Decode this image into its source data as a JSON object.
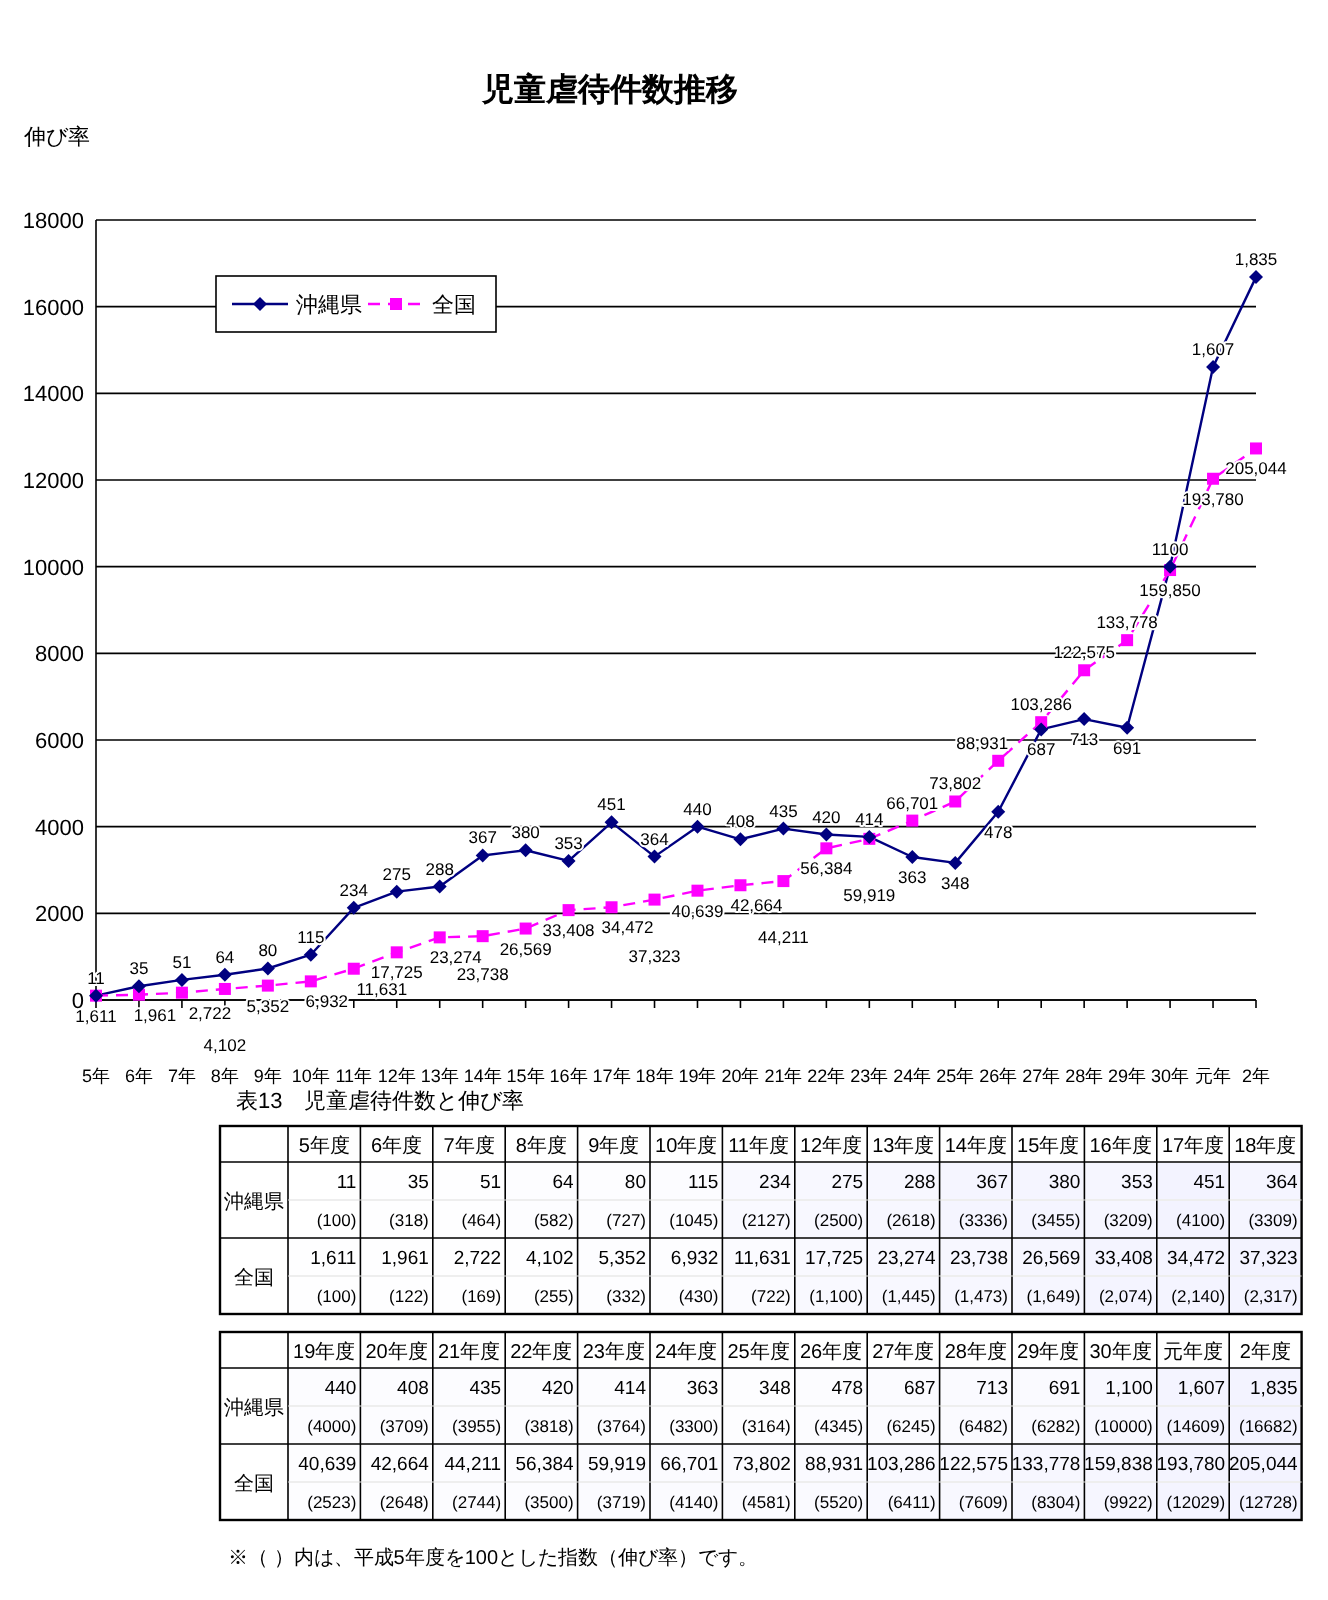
{
  "chart_data": [
    {
      "type": "line",
      "title": "児童虐待件数推移",
      "ylabel": "伸び率",
      "categories": [
        "5年",
        "6年",
        "7年",
        "8年",
        "9年",
        "10年",
        "11年",
        "12年",
        "13年",
        "14年",
        "15年",
        "16年",
        "17年",
        "18年",
        "19年",
        "20年",
        "21年",
        "22年",
        "23年",
        "24年",
        "25年",
        "26年",
        "27年",
        "28年",
        "29年",
        "30年",
        "元年",
        "2年"
      ],
      "ylim": [
        0,
        18000
      ],
      "yticks": [
        0,
        2000,
        4000,
        6000,
        8000,
        10000,
        12000,
        14000,
        16000,
        18000
      ],
      "grid": "y",
      "legend": "top left",
      "series": [
        {
          "name": "沖縄県",
          "color": "#000080",
          "marker": "diamond",
          "line_style": "solid",
          "values": [
            100,
            318,
            464,
            582,
            727,
            1045,
            2127,
            2500,
            2618,
            3336,
            3455,
            3209,
            4100,
            3309,
            4000,
            3709,
            3955,
            3818,
            3764,
            3300,
            3164,
            4345,
            6245,
            6482,
            6282,
            10000,
            14609,
            16682
          ]
        },
        {
          "name": "全国",
          "color": "#ff00ff",
          "marker": "square",
          "line_style": "dashed",
          "values": [
            100,
            122,
            169,
            255,
            332,
            430,
            722,
            1100,
            1445,
            1473,
            1649,
            2074,
            2140,
            2317,
            2523,
            2648,
            2744,
            3500,
            3719,
            4140,
            4581,
            5520,
            6411,
            7609,
            8304,
            9922,
            12029,
            12728
          ]
        }
      ],
      "annotations": [
        {
          "text": "11",
          "x": "5年",
          "y": 100
        },
        {
          "text": "35",
          "x": "6年",
          "y": 318
        },
        {
          "text": "51",
          "x": "7年",
          "y": 464
        },
        {
          "text": "64",
          "x": "8年",
          "y": 582
        },
        {
          "text": "80",
          "x": "9年",
          "y": 727
        },
        {
          "text": "115",
          "x": "10年",
          "y": 1045
        },
        {
          "text": "234",
          "x": "11年",
          "y": 2127
        },
        {
          "text": "275",
          "x": "12年",
          "y": 2500
        },
        {
          "text": "288",
          "x": "13年",
          "y": 2618
        },
        {
          "text": "367",
          "x": "14年",
          "y": 3336
        },
        {
          "text": "380",
          "x": "15年",
          "y": 3455
        },
        {
          "text": "353",
          "x": "16年",
          "y": 3209
        },
        {
          "text": "451",
          "x": "17年",
          "y": 4100
        },
        {
          "text": "364",
          "x": "18年",
          "y": 3309
        },
        {
          "text": "440",
          "x": "19年",
          "y": 4000
        },
        {
          "text": "408",
          "x": "20年",
          "y": 3709
        },
        {
          "text": "435",
          "x": "21年",
          "y": 3955
        },
        {
          "text": "420",
          "x": "22年",
          "y": 3818
        },
        {
          "text": "414",
          "x": "23年",
          "y": 3764
        },
        {
          "text": "363",
          "x": "24年",
          "y": 3300
        },
        {
          "text": "348",
          "x": "25年",
          "y": 3164
        },
        {
          "text": "478",
          "x": "26年",
          "y": 4345
        },
        {
          "text": "687",
          "x": "27年",
          "y": 6245
        },
        {
          "text": "713",
          "x": "28年",
          "y": 6482
        },
        {
          "text": "691",
          "x": "29年",
          "y": 6282
        },
        {
          "text": "1100",
          "x": "30年",
          "y": 10000
        },
        {
          "text": "1,607",
          "x": "元年",
          "y": 14609
        },
        {
          "text": "1,835",
          "x": "2年",
          "y": 16682
        },
        {
          "text": "1,611",
          "x": "5年",
          "y": 100
        },
        {
          "text": "1,961",
          "x": "6年",
          "y": 122
        },
        {
          "text": "2,722",
          "x": "7年",
          "y": 169
        },
        {
          "text": "4,102",
          "x": "8年",
          "y": 255
        },
        {
          "text": "5,352",
          "x": "9年",
          "y": 332
        },
        {
          "text": "6,932",
          "x": "10年",
          "y": 430
        },
        {
          "text": "11,631",
          "x": "11年",
          "y": 722
        },
        {
          "text": "17,725",
          "x": "12年",
          "y": 1100
        },
        {
          "text": "23,274",
          "x": "13年",
          "y": 1445
        },
        {
          "text": "23,738",
          "x": "14年",
          "y": 1473
        },
        {
          "text": "26,569",
          "x": "15年",
          "y": 1649
        },
        {
          "text": "33,408",
          "x": "16年",
          "y": 2074
        },
        {
          "text": "34,472",
          "x": "17年",
          "y": 2140
        },
        {
          "text": "37,323",
          "x": "18年",
          "y": 2317
        },
        {
          "text": "40,639",
          "x": "19年",
          "y": 2523
        },
        {
          "text": "42,664",
          "x": "20年",
          "y": 2648
        },
        {
          "text": "44,211",
          "x": "21年",
          "y": 2744
        },
        {
          "text": "56,384",
          "x": "22年",
          "y": 3500
        },
        {
          "text": "59,919",
          "x": "23年",
          "y": 3719
        },
        {
          "text": "66,701",
          "x": "24年",
          "y": 4140
        },
        {
          "text": "73,802",
          "x": "25年",
          "y": 4581
        },
        {
          "text": "88,931",
          "x": "26年",
          "y": 5520
        },
        {
          "text": "103,286",
          "x": "27年",
          "y": 6411
        },
        {
          "text": "122,575",
          "x": "28年",
          "y": 7609
        },
        {
          "text": "133,778",
          "x": "29年",
          "y": 8304
        },
        {
          "text": "159,850",
          "x": "30年",
          "y": 9922
        },
        {
          "text": "193,780",
          "x": "元年",
          "y": 12029
        },
        {
          "text": "205,044",
          "x": "2年",
          "y": 12728
        }
      ]
    },
    {
      "type": "heatmap",
      "title": "表13　児童虐待件数と伸び率",
      "categories": [
        "5年度",
        "6年度",
        "7年度",
        "8年度",
        "9年度",
        "10年度",
        "11年度",
        "12年度",
        "13年度",
        "14年度",
        "15年度",
        "16年度",
        "17年度",
        "18年度"
      ],
      "y_categories": [
        "沖縄県",
        null,
        "全国",
        null
      ],
      "cells": [
        [
          11,
          35,
          51,
          64,
          80,
          115,
          234,
          275,
          288,
          367,
          380,
          353,
          451,
          364
        ],
        [
          100,
          318,
          464,
          582,
          727,
          1045,
          2127,
          2500,
          2618,
          3336,
          3455,
          3209,
          4100,
          3309
        ],
        [
          1611,
          1961,
          2722,
          4102,
          5352,
          6932,
          11631,
          17725,
          23274,
          23738,
          26569,
          33408,
          34472,
          37323
        ],
        [
          100,
          122,
          169,
          255,
          332,
          430,
          722,
          1100,
          1445,
          1473,
          1649,
          2074,
          2140,
          2317
        ]
      ],
      "cell_labels": [
        [
          "11",
          "35",
          "51",
          "64",
          "80",
          "115",
          "234",
          "275",
          "288",
          "367",
          "380",
          "353",
          "451",
          "364"
        ],
        [
          "(100)",
          "(318)",
          "(464)",
          "(582)",
          "(727)",
          "(1045)",
          "(2127)",
          "(2500)",
          "(2618)",
          "(3336)",
          "(3455)",
          "(3209)",
          "(4100)",
          "(3309)"
        ],
        [
          "1,611",
          "1,961",
          "2,722",
          "4,102",
          "5,352",
          "6,932",
          "11,631",
          "17,725",
          "23,274",
          "23,738",
          "26,569",
          "33,408",
          "34,472",
          "37,323"
        ],
        [
          "(100)",
          "(122)",
          "(169)",
          "(255)",
          "(332)",
          "(430)",
          "(722)",
          "(1,100)",
          "(1,445)",
          "(1,473)",
          "(1,649)",
          "(2,074)",
          "(2,140)",
          "(2,317)"
        ]
      ],
      "grid": true
    },
    {
      "type": "heatmap",
      "categories": [
        "19年度",
        "20年度",
        "21年度",
        "22年度",
        "23年度",
        "24年度",
        "25年度",
        "26年度",
        "27年度",
        "28年度",
        "29年度",
        "30年度",
        "元年度",
        "2年度"
      ],
      "y_categories": [
        "沖縄県",
        null,
        "全国",
        null
      ],
      "cells": [
        [
          440,
          408,
          435,
          420,
          414,
          363,
          348,
          478,
          687,
          713,
          691,
          1100,
          1607,
          1835
        ],
        [
          4000,
          3709,
          3955,
          3818,
          3764,
          3300,
          3164,
          4345,
          6245,
          6482,
          6282,
          10000,
          14609,
          16682
        ],
        [
          40639,
          42664,
          44211,
          56384,
          59919,
          66701,
          73802,
          88931,
          103286,
          122575,
          133778,
          159838,
          193780,
          205044
        ],
        [
          2523,
          2648,
          2744,
          3500,
          3719,
          4140,
          4581,
          5520,
          6411,
          7609,
          8304,
          9922,
          12029,
          12728
        ]
      ],
      "cell_labels": [
        [
          "440",
          "408",
          "435",
          "420",
          "414",
          "363",
          "348",
          "478",
          "687",
          "713",
          "691",
          "1,100",
          "1,607",
          "1,835"
        ],
        [
          "(4000)",
          "(3709)",
          "(3955)",
          "(3818)",
          "(3764)",
          "(3300)",
          "(3164)",
          "(4345)",
          "(6245)",
          "(6482)",
          "(6282)",
          "(10000)",
          "(14609)",
          "(16682)"
        ],
        [
          "40,639",
          "42,664",
          "44,211",
          "56,384",
          "59,919",
          "66,701",
          "73,802",
          "88,931",
          "103,286",
          "122,575",
          "133,778",
          "159,838",
          "193,780",
          "205,044"
        ],
        [
          "(2523)",
          "(2648)",
          "(2744)",
          "(3500)",
          "(3719)",
          "(4140)",
          "(4581)",
          "(5520)",
          "(6411)",
          "(7609)",
          "(8304)",
          "(9922)",
          "(12029)",
          "(12728)"
        ]
      ],
      "grid": true,
      "annotations": [
        "※（ ）内は、平成5年度を100とした指数（伸び率）です。"
      ]
    }
  ]
}
